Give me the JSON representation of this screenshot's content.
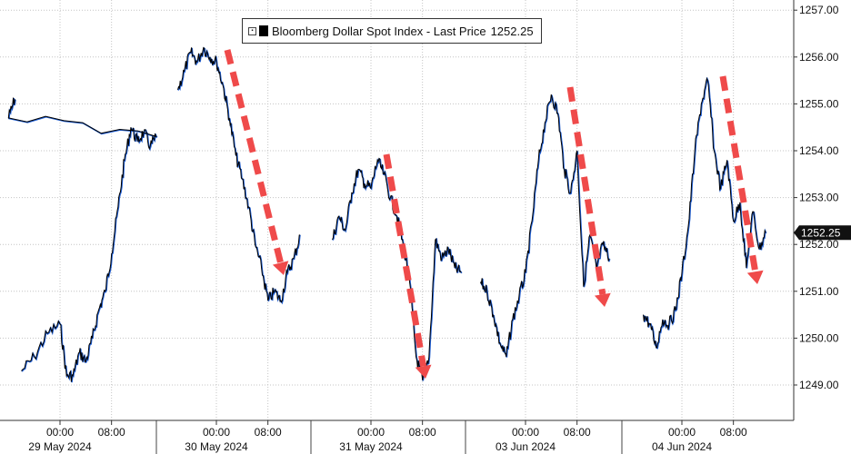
{
  "chart_data": {
    "type": "line",
    "title": "",
    "legend": {
      "series_name": "Bloomberg Dollar Spot Index - Last Price",
      "last_value": "1252.25",
      "placement": "top-center"
    },
    "y_axis": {
      "position": "right",
      "ylim": [
        1248.4,
        1257.2
      ],
      "ticks": [
        "1249.00",
        "1250.00",
        "1251.00",
        "1252.00",
        "1253.00",
        "1254.00",
        "1255.00",
        "1256.00",
        "1257.00"
      ],
      "last_price_label": "1252.25"
    },
    "x_axis": {
      "time_ticks": [
        "00:00",
        "08:00",
        "00:00",
        "08:00",
        "00:00",
        "08:00",
        "00:00",
        "08:00",
        "00:00",
        "08:00"
      ],
      "date_labels": [
        "29 May 2024",
        "30 May 2024",
        "31 May 2024",
        "03 Jun 2024",
        "04 Jun 2024"
      ]
    },
    "grid": true,
    "colors": {
      "line": "#000000",
      "overlay": "#1f5fd6",
      "arrow": "#ef4a4a",
      "grid": "#c4c4c4"
    },
    "annotations": [
      "down-arrow",
      "down-arrow",
      "down-arrow",
      "down-arrow",
      "down-arrow"
    ],
    "series": [
      {
        "name": "Bloomberg Dollar Spot Index - Last Price",
        "segments": [
          {
            "date": "29 May 2024",
            "points": [
              [
                "18:00",
                1249.3
              ],
              [
                "20:00",
                1249.6
              ],
              [
                "22:00",
                1250.1
              ],
              [
                "00:00",
                1250.3
              ],
              [
                "01:00",
                1249.2
              ],
              [
                "02:00",
                1249.2
              ],
              [
                "03:00",
                1249.7
              ],
              [
                "04:00",
                1249.5
              ],
              [
                "05:00",
                1250.0
              ],
              [
                "06:00",
                1250.6
              ],
              [
                "07:00",
                1251.0
              ],
              [
                "08:00",
                1251.8
              ],
              [
                "09:00",
                1252.8
              ],
              [
                "10:00",
                1253.8
              ],
              [
                "11:00",
                1254.5
              ],
              [
                "12:00",
                1254.2
              ],
              [
                "13:00",
                1254.4
              ],
              [
                "14:00",
                1254.1
              ],
              [
                "15:00",
                1254.3
              ],
              [
                "16:00",
                1254.7
              ],
              [
                "17:00",
                1255.1
              ]
            ]
          },
          {
            "date": "30 May 2024",
            "points": [
              [
                "18:00",
                1255.3
              ],
              [
                "19:00",
                1255.7
              ],
              [
                "20:00",
                1256.1
              ],
              [
                "21:00",
                1255.9
              ],
              [
                "22:00",
                1256.2
              ],
              [
                "23:00",
                1256.0
              ],
              [
                "00:00",
                1255.9
              ],
              [
                "01:00",
                1255.4
              ],
              [
                "02:00",
                1254.7
              ],
              [
                "03:00",
                1253.9
              ],
              [
                "04:00",
                1253.4
              ],
              [
                "05:00",
                1252.8
              ],
              [
                "06:00",
                1252.0
              ],
              [
                "07:00",
                1251.5
              ],
              [
                "08:00",
                1250.8
              ],
              [
                "09:00",
                1251.0
              ],
              [
                "10:00",
                1250.8
              ],
              [
                "11:00",
                1251.4
              ],
              [
                "12:00",
                1251.7
              ],
              [
                "13:00",
                1252.2
              ]
            ]
          },
          {
            "date": "31 May 2024",
            "points": [
              [
                "18:00",
                1252.1
              ],
              [
                "19:00",
                1252.6
              ],
              [
                "20:00",
                1252.3
              ],
              [
                "21:00",
                1253.1
              ],
              [
                "22:00",
                1253.6
              ],
              [
                "23:00",
                1253.3
              ],
              [
                "00:00",
                1253.2
              ],
              [
                "01:00",
                1253.8
              ],
              [
                "02:00",
                1253.5
              ],
              [
                "03:00",
                1253.0
              ],
              [
                "04:00",
                1252.6
              ],
              [
                "05:00",
                1252.0
              ],
              [
                "06:00",
                1251.2
              ],
              [
                "07:00",
                1249.6
              ],
              [
                "08:00",
                1249.1
              ],
              [
                "09:00",
                1249.6
              ],
              [
                "10:00",
                1252.1
              ],
              [
                "11:00",
                1251.7
              ],
              [
                "12:00",
                1251.9
              ],
              [
                "13:00",
                1251.5
              ],
              [
                "14:00",
                1251.4
              ]
            ]
          },
          {
            "date": "03 Jun 2024",
            "points": [
              [
                "17:00",
                1251.2
              ],
              [
                "18:00",
                1251.0
              ],
              [
                "19:00",
                1250.5
              ],
              [
                "20:00",
                1249.9
              ],
              [
                "21:00",
                1249.6
              ],
              [
                "22:00",
                1250.4
              ],
              [
                "23:00",
                1250.9
              ],
              [
                "00:00",
                1251.4
              ],
              [
                "01:00",
                1252.5
              ],
              [
                "02:00",
                1253.8
              ],
              [
                "03:00",
                1254.6
              ],
              [
                "04:00",
                1255.2
              ],
              [
                "05:00",
                1254.8
              ],
              [
                "06:00",
                1253.6
              ],
              [
                "07:00",
                1253.1
              ],
              [
                "08:00",
                1254.0
              ],
              [
                "09:00",
                1251.1
              ],
              [
                "10:00",
                1252.2
              ],
              [
                "11:00",
                1251.5
              ],
              [
                "12:00",
                1252.0
              ],
              [
                "13:00",
                1251.7
              ]
            ]
          },
          {
            "date": "04 Jun 2024",
            "points": [
              [
                "18:00",
                1250.5
              ],
              [
                "19:00",
                1250.3
              ],
              [
                "20:00",
                1249.8
              ],
              [
                "21:00",
                1250.4
              ],
              [
                "22:00",
                1250.3
              ],
              [
                "23:00",
                1250.6
              ],
              [
                "00:00",
                1251.4
              ],
              [
                "01:00",
                1252.4
              ],
              [
                "02:00",
                1254.0
              ],
              [
                "03:00",
                1255.0
              ],
              [
                "04:00",
                1255.5
              ],
              [
                "05:00",
                1254.0
              ],
              [
                "06:00",
                1253.2
              ],
              [
                "07:00",
                1253.8
              ],
              [
                "08:00",
                1252.5
              ],
              [
                "09:00",
                1252.9
              ],
              [
                "10:00",
                1251.5
              ],
              [
                "11:00",
                1252.7
              ],
              [
                "12:00",
                1251.9
              ],
              [
                "13:00",
                1252.25
              ]
            ]
          }
        ]
      }
    ]
  }
}
